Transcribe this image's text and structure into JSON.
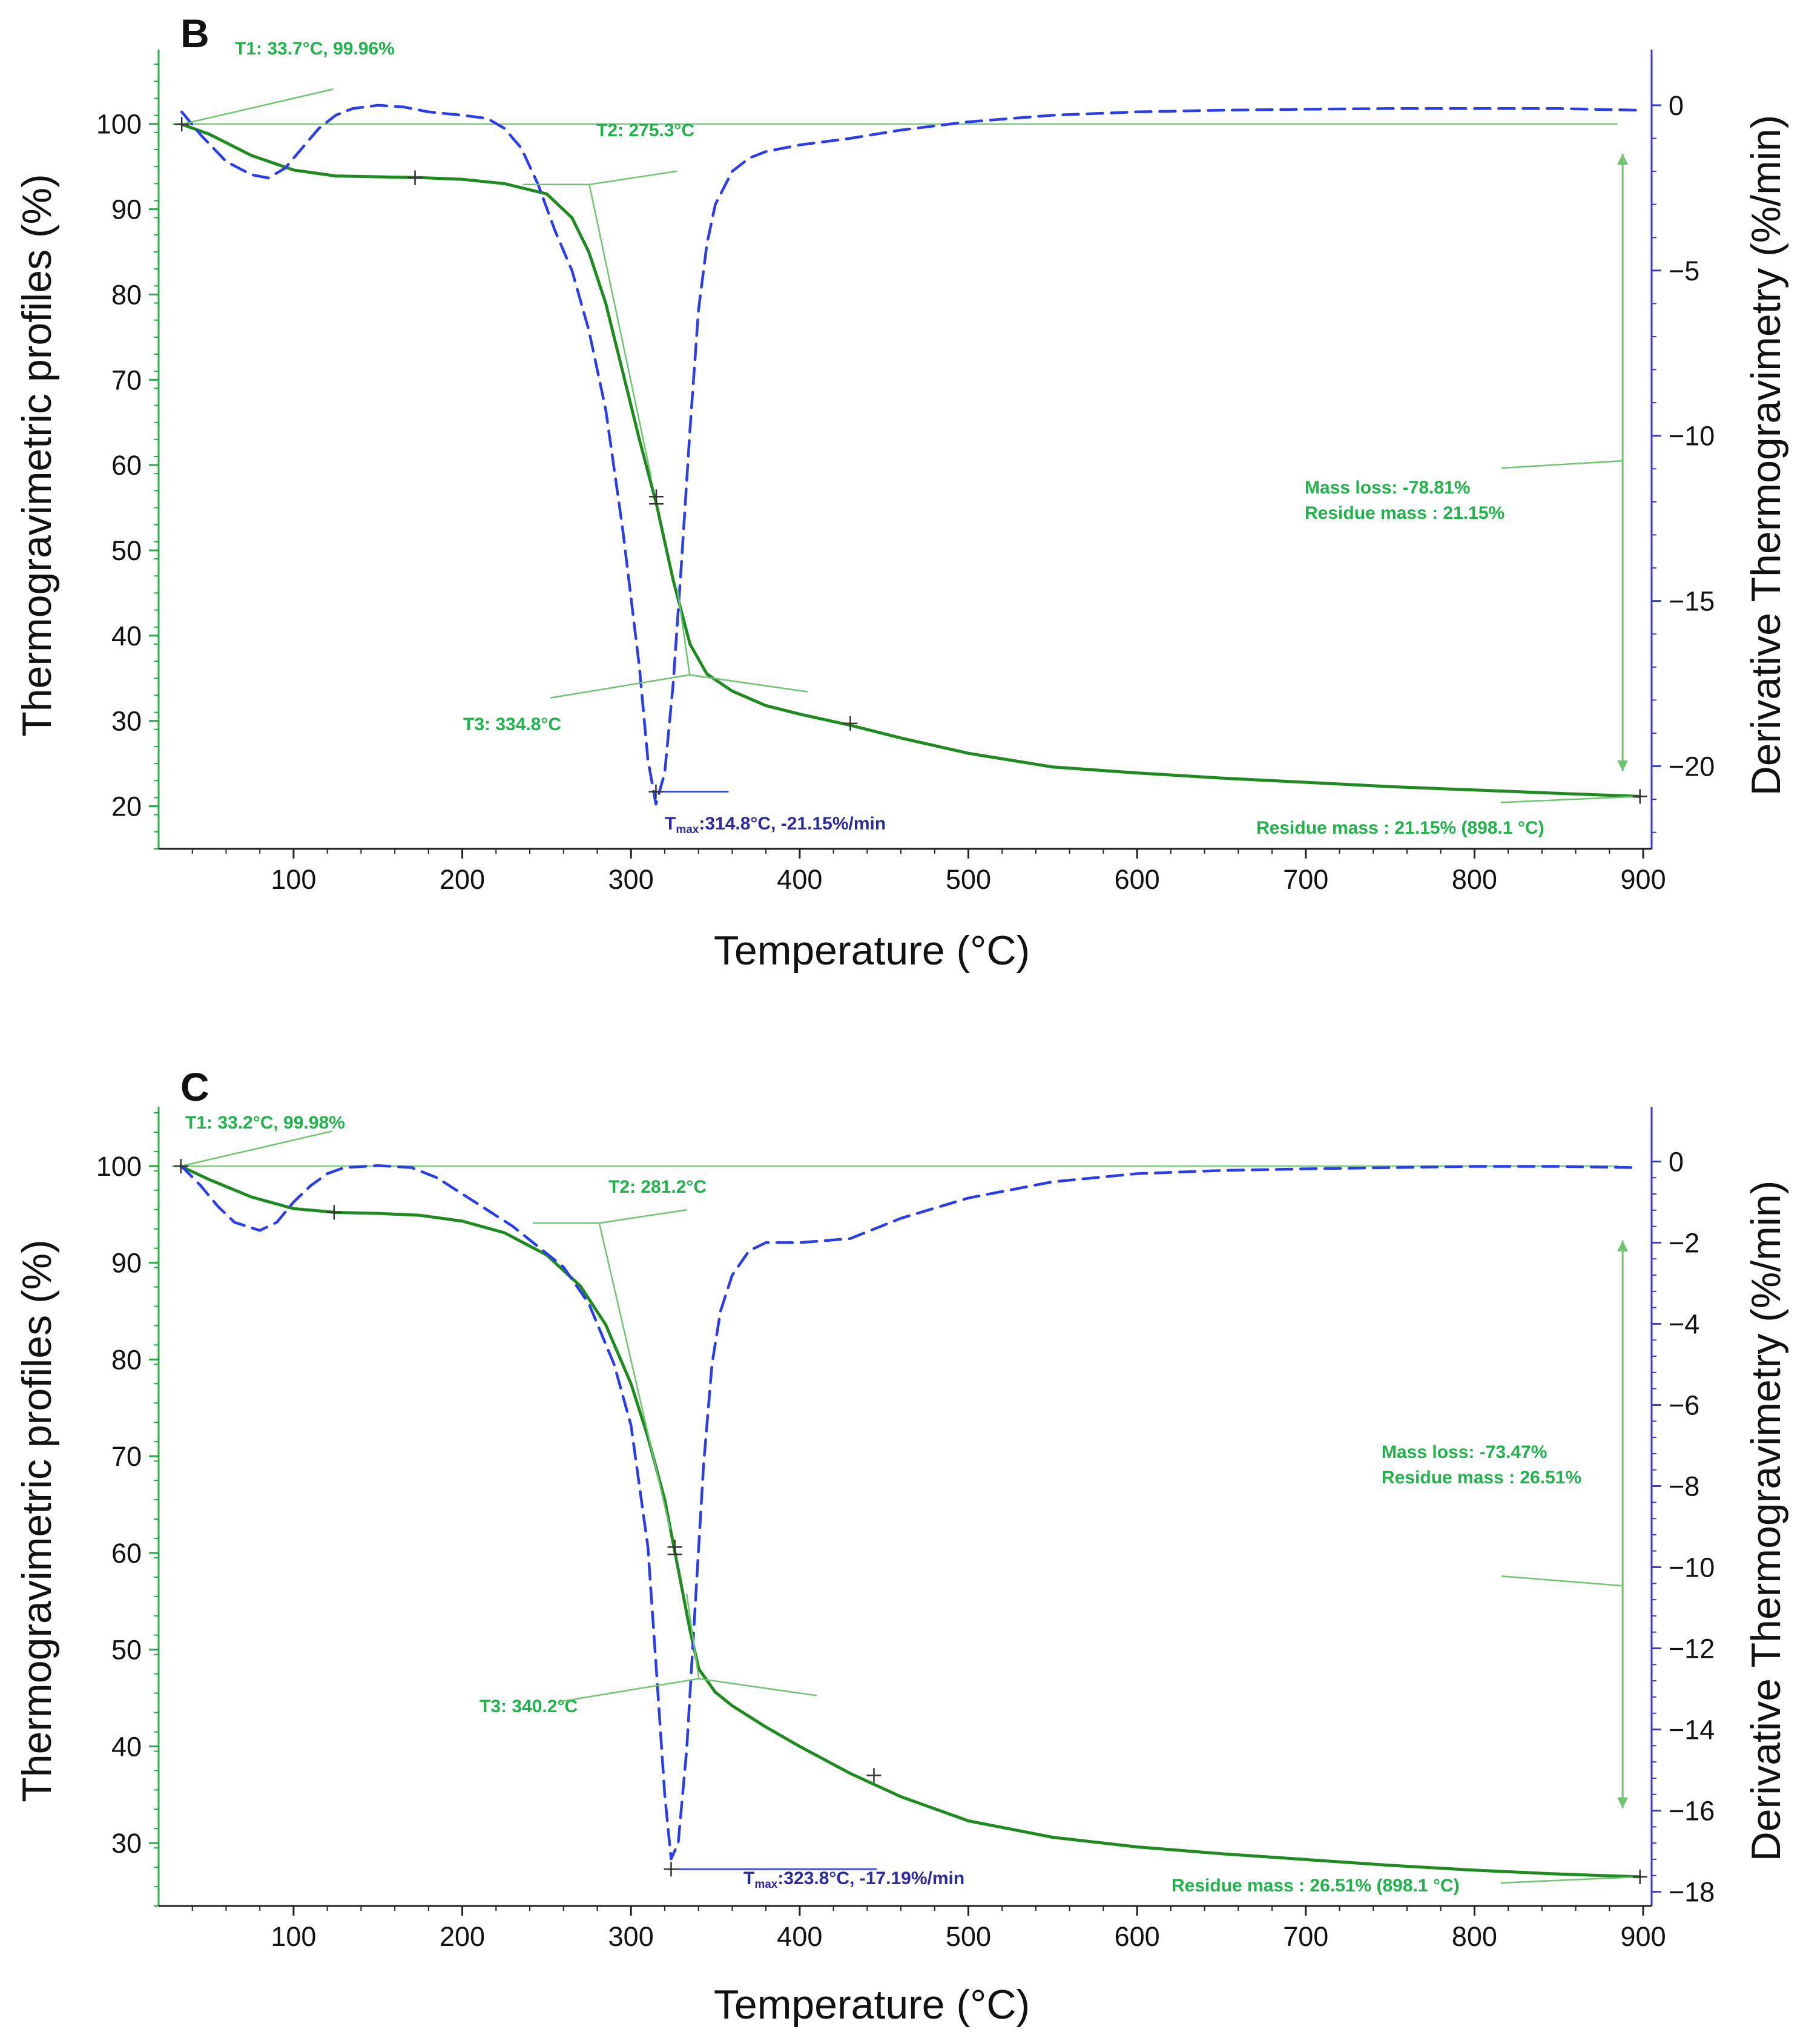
{
  "figure": {
    "colors": {
      "tga": "#1f8a1f",
      "dtg": "#2a3de8",
      "left_axis": "#2ea84a",
      "right_axis": "#3a3ad0",
      "annotation": "#22b24c",
      "tmax_label": "#2b2b9e"
    }
  },
  "chart_data": [
    {
      "panel": "B",
      "type": "line",
      "xlabel": "Temperature (°C)",
      "ylabel": "Thermogravimetric profiles (%)",
      "y2label": "Derivative Thermogravimetry (%/min)",
      "xlim": [
        20,
        905
      ],
      "ylim": [
        15,
        108
      ],
      "y2lim": [
        -22.5,
        1.5
      ],
      "xticks": [
        100,
        200,
        300,
        400,
        500,
        600,
        700,
        800,
        900
      ],
      "yticks": [
        20,
        30,
        40,
        50,
        60,
        70,
        80,
        90,
        100
      ],
      "y2ticks": [
        0,
        -5,
        -10,
        -15,
        -20
      ],
      "series": [
        {
          "name": "TGA",
          "axis": "left",
          "style": "solid",
          "x": [
            33.7,
            50,
            75,
            100,
            125,
            150,
            175,
            200,
            225,
            250,
            265,
            275,
            285,
            295,
            305,
            315,
            325,
            335,
            345,
            360,
            380,
            400,
            430,
            460,
            500,
            550,
            600,
            650,
            700,
            750,
            800,
            850,
            898.1
          ],
          "y": [
            99.96,
            98.8,
            96.3,
            94.6,
            93.9,
            93.8,
            93.7,
            93.5,
            93.0,
            91.8,
            89.0,
            85.0,
            79.0,
            71.0,
            63.0,
            55.5,
            46.5,
            39.0,
            35.5,
            33.5,
            31.8,
            30.8,
            29.5,
            28.0,
            26.2,
            24.6,
            23.9,
            23.3,
            22.8,
            22.3,
            21.9,
            21.5,
            21.15
          ]
        },
        {
          "name": "DTG",
          "axis": "right",
          "style": "dashed",
          "x": [
            33.7,
            45,
            60,
            75,
            85,
            95,
            105,
            115,
            125,
            135,
            150,
            165,
            180,
            200,
            215,
            225,
            235,
            245,
            255,
            265,
            275,
            285,
            295,
            305,
            310,
            314.8,
            320,
            325,
            330,
            335,
            340,
            345,
            350,
            360,
            370,
            380,
            400,
            430,
            460,
            500,
            550,
            600,
            650,
            700,
            750,
            800,
            850,
            898
          ],
          "y": [
            -0.2,
            -0.9,
            -1.7,
            -2.1,
            -2.2,
            -1.9,
            -1.3,
            -0.7,
            -0.3,
            -0.1,
            0,
            -0.05,
            -0.2,
            -0.3,
            -0.4,
            -0.7,
            -1.3,
            -2.4,
            -3.8,
            -5.0,
            -6.8,
            -9.2,
            -12.8,
            -17.0,
            -19.8,
            -21.15,
            -20.2,
            -17.5,
            -13.8,
            -9.8,
            -6.2,
            -4.2,
            -3.0,
            -2.0,
            -1.6,
            -1.4,
            -1.2,
            -1.0,
            -0.75,
            -0.5,
            -0.3,
            -0.2,
            -0.15,
            -0.12,
            -0.1,
            -0.1,
            -0.1,
            -0.15
          ]
        }
      ],
      "annotations": {
        "t1": "T1: 33.7°C, 99.96%",
        "t2": "T2: 275.3°C",
        "t3": "T3: 334.8°C",
        "tmax_prefix": "T",
        "tmax_sub": "max",
        "tmax_value": ":314.8°C, -21.15%/min",
        "mass_loss": "Mass loss: -78.81%",
        "residue_mass": "Residue mass : 21.15%",
        "residue_final": "Residue mass : 21.15% (898.1 °C)"
      },
      "markers": {
        "t1": [
          33.7,
          99.96
        ],
        "t2": [
          275.3,
          92.9
        ],
        "t3": [
          334.8,
          35.4
        ],
        "tmax": [
          314.8,
          21.7
        ],
        "mid": [
          315,
          56.3
        ],
        "knee": [
          172,
          93.7
        ],
        "after": [
          430,
          29.7
        ],
        "end": [
          898.1,
          21.15
        ],
        "mass_loss_top": 96.5,
        "mass_loss_bottom": 24.1,
        "mass_loss_pointer": 60.5
      }
    },
    {
      "panel": "C",
      "type": "line",
      "xlabel": "Temperature (°C)",
      "ylabel": "Thermogravimetric profiles (%)",
      "y2label": "Derivative Thermogravimetry (%/min)",
      "xlim": [
        20,
        905
      ],
      "ylim": [
        23.5,
        105.5
      ],
      "y2lim": [
        -18.35,
        1.2
      ],
      "xticks": [
        100,
        200,
        300,
        400,
        500,
        600,
        700,
        800,
        900
      ],
      "yticks": [
        30,
        40,
        50,
        60,
        70,
        80,
        90,
        100
      ],
      "y2ticks": [
        0,
        -2,
        -4,
        -6,
        -8,
        -10,
        -12,
        -14,
        -16,
        -18
      ],
      "series": [
        {
          "name": "TGA",
          "axis": "left",
          "style": "solid",
          "x": [
            33.2,
            50,
            75,
            100,
            125,
            150,
            175,
            200,
            225,
            250,
            270,
            285,
            300,
            310,
            320,
            325,
            330,
            335,
            340.2,
            350,
            360,
            380,
            400,
            430,
            460,
            500,
            550,
            600,
            650,
            700,
            750,
            800,
            850,
            898.1
          ],
          "y": [
            99.98,
            98.6,
            96.8,
            95.6,
            95.2,
            95.1,
            94.9,
            94.3,
            93.1,
            90.8,
            87.6,
            83.6,
            77.5,
            72.0,
            65.5,
            61.0,
            56.5,
            52.0,
            48.0,
            45.6,
            44.2,
            42.0,
            40.0,
            37.2,
            34.8,
            32.3,
            30.6,
            29.6,
            28.9,
            28.3,
            27.7,
            27.2,
            26.8,
            26.51
          ]
        },
        {
          "name": "DTG",
          "axis": "right",
          "style": "dashed",
          "x": [
            33.2,
            45,
            55,
            65,
            80,
            90,
            100,
            110,
            120,
            130,
            150,
            170,
            185,
            200,
            215,
            230,
            245,
            260,
            275,
            290,
            300,
            310,
            315,
            320,
            323.8,
            328,
            333,
            338,
            343,
            348,
            353,
            360,
            370,
            380,
            400,
            430,
            460,
            500,
            550,
            600,
            650,
            700,
            750,
            800,
            850,
            895
          ],
          "y": [
            -0.1,
            -0.6,
            -1.1,
            -1.5,
            -1.7,
            -1.5,
            -1.0,
            -0.6,
            -0.3,
            -0.15,
            -0.1,
            -0.15,
            -0.4,
            -0.8,
            -1.2,
            -1.6,
            -2.1,
            -2.6,
            -3.5,
            -5.0,
            -6.5,
            -9.5,
            -12.5,
            -15.6,
            -17.19,
            -16.8,
            -14.5,
            -11.0,
            -7.5,
            -5.0,
            -3.7,
            -2.8,
            -2.2,
            -2.0,
            -2.0,
            -1.9,
            -1.4,
            -0.9,
            -0.5,
            -0.3,
            -0.22,
            -0.18,
            -0.15,
            -0.12,
            -0.12,
            -0.15
          ]
        }
      ],
      "annotations": {
        "t1": "T1: 33.2°C, 99.98%",
        "t2": "T2: 281.2°C",
        "t3": "T3: 340.2°C",
        "tmax_prefix": "T",
        "tmax_sub": "max",
        "tmax_value": ":323.8°C, -17.19%/min",
        "mass_loss": "Mass loss: -73.47%",
        "residue_mass": "Residue mass : 26.51%",
        "residue_final": "Residue mass : 26.51% (898.1 °C)"
      },
      "markers": {
        "t1": [
          33.2,
          99.98
        ],
        "t2": [
          281.2,
          94.1
        ],
        "t3": [
          340.2,
          47.0
        ],
        "tmax": [
          323.8,
          27.3
        ],
        "mid": [
          326,
          60.6
        ],
        "knee": [
          124,
          95.2
        ],
        "after": [
          444,
          37.0
        ],
        "end": [
          898.1,
          26.51
        ],
        "mass_loss_top": 92.3,
        "mass_loss_bottom": 33.6,
        "mass_loss_pointer": 56.6
      }
    }
  ]
}
